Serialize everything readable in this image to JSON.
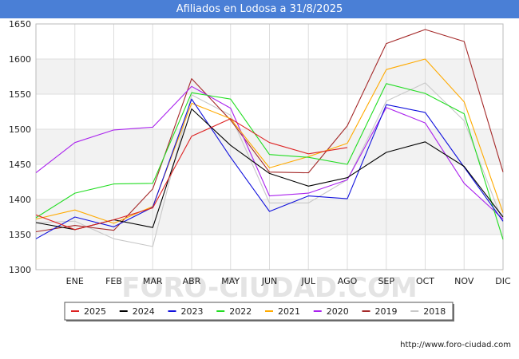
{
  "chart_data": {
    "type": "line",
    "title": "Afiliados en Lodosa a 31/8/2025",
    "xlabel": "",
    "ylabel": "",
    "ylim": [
      1300,
      1650
    ],
    "yticks": [
      1300,
      1350,
      1400,
      1450,
      1500,
      1550,
      1600,
      1650
    ],
    "categories": [
      "",
      "ENE",
      "FEB",
      "MAR",
      "ABR",
      "MAY",
      "JUN",
      "JUL",
      "AGO",
      "SEP",
      "OCT",
      "NOV",
      "DIC"
    ],
    "grid": true,
    "legend_position": "bottom",
    "series": [
      {
        "name": "2025",
        "color": "#dd2222",
        "values": [
          1378,
          1357,
          1371,
          1388,
          1490,
          1515,
          1481,
          1465,
          1474,
          null,
          null,
          null,
          null
        ]
      },
      {
        "name": "2024",
        "color": "#000000",
        "values": [
          1367,
          1357,
          1371,
          1360,
          1529,
          1477,
          1437,
          1419,
          1431,
          1467,
          1482,
          1447,
          1375
        ]
      },
      {
        "name": "2023",
        "color": "#1111dd",
        "values": [
          1344,
          1375,
          1361,
          1389,
          1543,
          1460,
          1383,
          1405,
          1401,
          1535,
          1524,
          1446,
          1369
        ]
      },
      {
        "name": "2022",
        "color": "#22dd22",
        "values": [
          1374,
          1409,
          1422,
          1423,
          1552,
          1543,
          1464,
          1460,
          1450,
          1565,
          1551,
          1522,
          1343
        ]
      },
      {
        "name": "2021",
        "color": "#ffaa00",
        "values": [
          1372,
          1385,
          1366,
          1390,
          1537,
          1515,
          1445,
          1461,
          1480,
          1585,
          1600,
          1539,
          1381
        ]
      },
      {
        "name": "2020",
        "color": "#aa22ee",
        "values": [
          1438,
          1481,
          1499,
          1503,
          1561,
          1530,
          1405,
          1409,
          1428,
          1531,
          1509,
          1423,
          1372
        ]
      },
      {
        "name": "2019",
        "color": "#a52a2a",
        "values": [
          1354,
          1363,
          1356,
          1415,
          1572,
          1513,
          1439,
          1438,
          1505,
          1622,
          1642,
          1625,
          1439
        ]
      },
      {
        "name": "2018",
        "color": "#c8c8c8",
        "values": [
          1367,
          1369,
          1344,
          1333,
          1549,
          1520,
          1395,
          1395,
          1428,
          1540,
          1566,
          1512,
          1367
        ]
      }
    ]
  },
  "footer": {
    "url": "http://www.foro-ciudad.com"
  }
}
